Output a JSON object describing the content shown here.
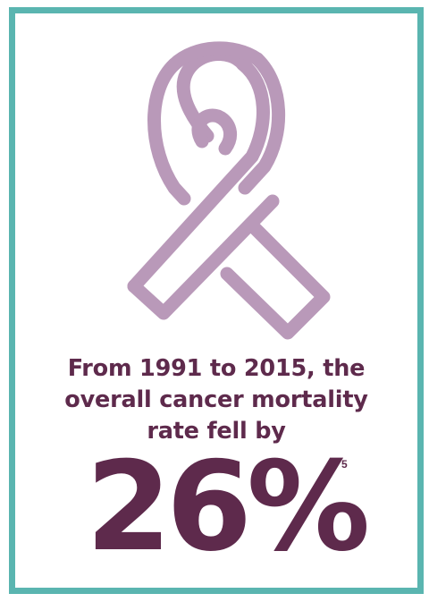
{
  "colors": {
    "frame": "#5ab5b0",
    "ribbon": "#b999b9",
    "text": "#5e2a4c"
  },
  "icon": "awareness-ribbon-icon",
  "headline": {
    "line1": "From 1991 to 2015, the",
    "line2": "overall cancer mortality",
    "line3": "rate fell by"
  },
  "stat": {
    "value": "26%",
    "footnote": "5"
  }
}
